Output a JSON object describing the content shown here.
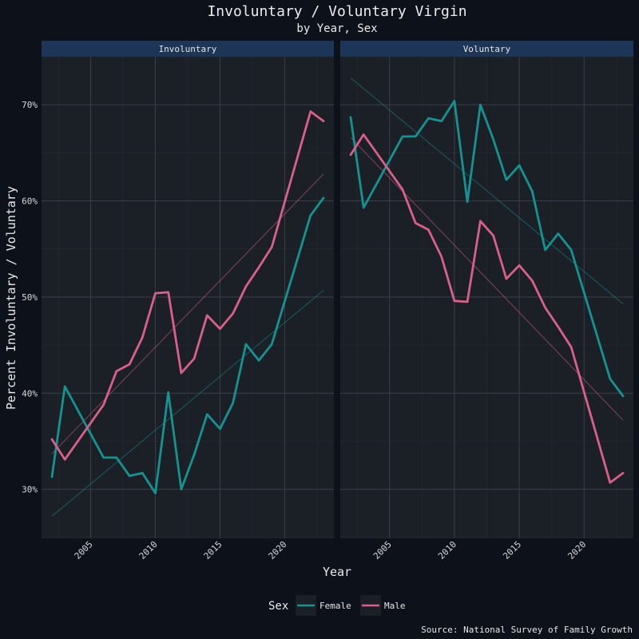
{
  "chart_data": {
    "type": "line",
    "title": "Involuntary / Voluntary Virgin",
    "subtitle": "by Year, Sex",
    "xlabel": "Year",
    "ylabel": "Percent Involuntary / Voluntary",
    "caption": "Source: National Survey of Family Growth",
    "xlim": [
      2001.2,
      2023.8
    ],
    "ylim": [
      24.9,
      75.0
    ],
    "x_ticks": [
      2005,
      2010,
      2015,
      2020
    ],
    "x_tick_labels": [
      "2005",
      "2010",
      "2015",
      "2020"
    ],
    "y_ticks": [
      30,
      40,
      50,
      60,
      70
    ],
    "y_tick_labels": [
      "30%",
      "40%",
      "50%",
      "60%",
      "70%"
    ],
    "grid": true,
    "legend": {
      "title": "Sex",
      "position": "bottom",
      "entries": [
        "Female",
        "Male"
      ]
    },
    "series_colors": {
      "Female": "#159393",
      "Male": "#d9608a"
    },
    "facets": [
      {
        "label": "Involuntary",
        "series": [
          {
            "name": "Female",
            "x": [
              2002,
              2003,
              2006,
              2007,
              2008,
              2009,
              2010,
              2011,
              2012,
              2013,
              2014,
              2015,
              2016,
              2017,
              2018,
              2019,
              2022,
              2023
            ],
            "values": [
              31.3,
              40.7,
              33.3,
              33.3,
              31.4,
              31.7,
              29.6,
              40.1,
              30.0,
              33.6,
              37.8,
              36.3,
              39.0,
              45.1,
              43.4,
              45.1,
              58.5,
              60.3
            ]
          },
          {
            "name": "Male",
            "x": [
              2002,
              2003,
              2006,
              2007,
              2008,
              2009,
              2010,
              2011,
              2012,
              2013,
              2014,
              2015,
              2016,
              2017,
              2018,
              2019,
              2022,
              2023
            ],
            "values": [
              35.2,
              33.1,
              38.8,
              42.3,
              43.0,
              45.8,
              50.4,
              50.5,
              42.1,
              43.6,
              48.1,
              46.7,
              48.3,
              51.1,
              53.1,
              55.2,
              69.3,
              68.3
            ]
          }
        ],
        "trend": [
          {
            "name": "Female",
            "x": [
              2002,
              2023
            ],
            "values": [
              27.2,
              50.7
            ]
          },
          {
            "name": "Male",
            "x": [
              2002,
              2023
            ],
            "values": [
              33.7,
              62.8
            ]
          }
        ]
      },
      {
        "label": "Voluntary",
        "series": [
          {
            "name": "Female",
            "x": [
              2002,
              2003,
              2006,
              2007,
              2008,
              2009,
              2010,
              2011,
              2012,
              2013,
              2014,
              2015,
              2016,
              2017,
              2018,
              2019,
              2022,
              2023
            ],
            "values": [
              68.7,
              59.3,
              66.7,
              66.7,
              68.6,
              68.3,
              70.4,
              59.9,
              70.0,
              66.4,
              62.2,
              63.7,
              61.0,
              54.9,
              56.6,
              54.9,
              41.5,
              39.7
            ]
          },
          {
            "name": "Male",
            "x": [
              2002,
              2003,
              2006,
              2007,
              2008,
              2009,
              2010,
              2011,
              2012,
              2013,
              2014,
              2015,
              2016,
              2017,
              2018,
              2019,
              2022,
              2023
            ],
            "values": [
              64.8,
              66.9,
              61.2,
              57.7,
              57.0,
              54.2,
              49.6,
              49.5,
              57.9,
              56.4,
              51.9,
              53.3,
              51.7,
              48.9,
              46.9,
              44.8,
              30.7,
              31.7
            ]
          }
        ],
        "trend": [
          {
            "name": "Female",
            "x": [
              2002,
              2023
            ],
            "values": [
              72.8,
              49.3
            ]
          },
          {
            "name": "Male",
            "x": [
              2002,
              2023
            ],
            "values": [
              66.6,
              37.2
            ]
          }
        ]
      }
    ]
  }
}
